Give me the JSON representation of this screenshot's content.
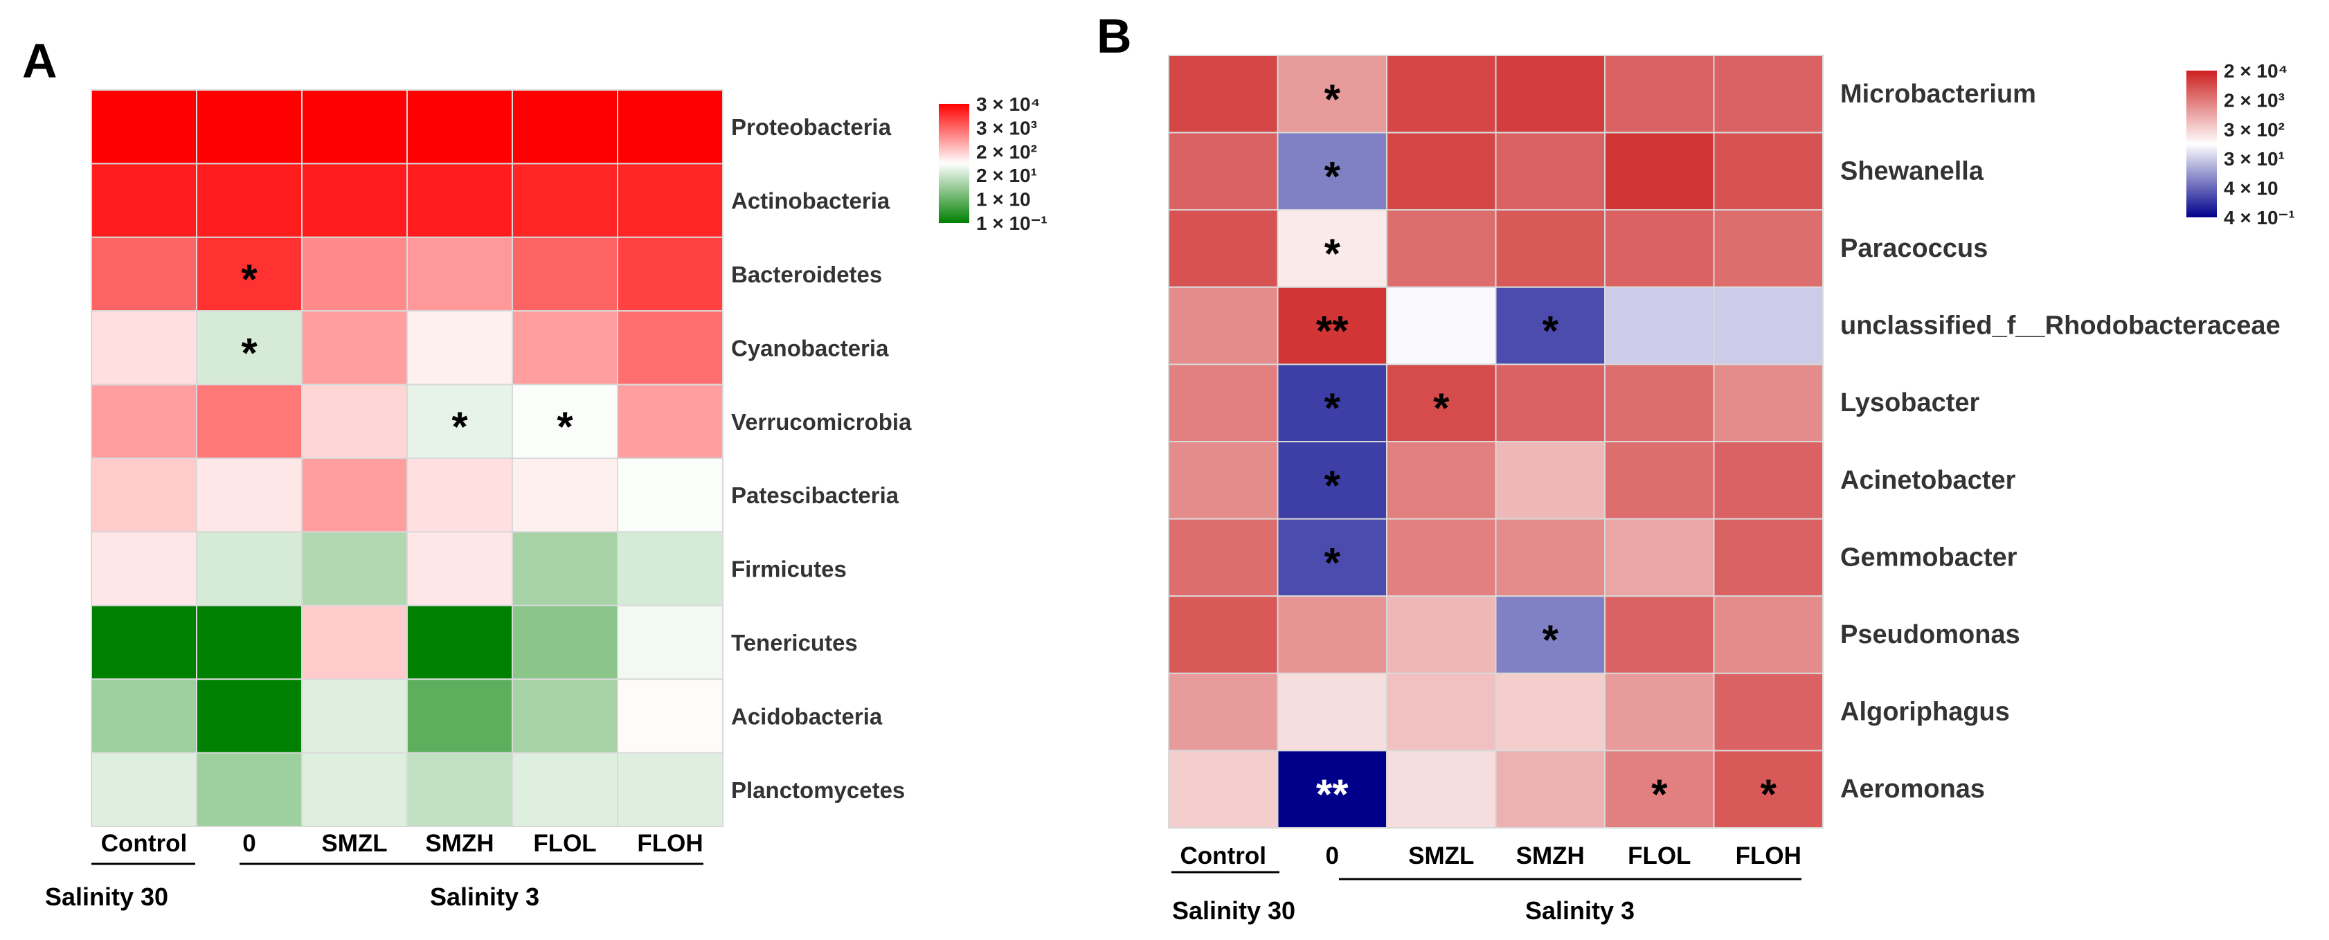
{
  "chart_data": [
    {
      "panel": "A",
      "type": "heatmap",
      "rows": [
        "Proteobacteria",
        "Actinobacteria",
        "Bacteroidetes",
        "Cyanobacteria",
        "Verrucomicrobia",
        "Patescibacteria",
        "Firmicutes",
        "Tenericutes",
        "Acidobacteria",
        "Planctomycetes"
      ],
      "columns": [
        "Control",
        "0",
        "SMZL",
        "SMZH",
        "FLOL",
        "FLOH"
      ],
      "groups": [
        {
          "label": "Salinity 30",
          "columns": [
            "Control"
          ]
        },
        {
          "label": "Salinity 3",
          "columns": [
            "0",
            "SMZL",
            "SMZH",
            "FLOL",
            "FLOH"
          ]
        }
      ],
      "scale": "log10",
      "colors": [
        "#008000",
        "#ffffff",
        "#ff0000"
      ],
      "legend": {
        "ticks": [
          "3 × 10⁴",
          "3 × 10³",
          "2 × 10²",
          "2 × 10¹",
          "1 × 10",
          "1 × 10⁻¹"
        ],
        "range": [
          30000,
          0.1
        ]
      },
      "values": [
        [
          30000,
          30000,
          30000,
          30000,
          30000,
          30000
        ],
        [
          15000,
          15000,
          15000,
          15000,
          12000,
          12000
        ],
        [
          2500,
          9000,
          1000,
          700,
          2500,
          6000
        ],
        [
          120,
          20,
          600,
          80,
          600,
          2000
        ],
        [
          600,
          1500,
          150,
          30,
          50,
          600
        ],
        [
          200,
          100,
          600,
          120,
          80,
          50
        ],
        [
          100,
          20,
          8,
          100,
          6,
          20
        ],
        [
          0.1,
          0.1,
          200,
          0.1,
          3,
          40
        ],
        [
          5,
          0.1,
          25,
          1,
          6,
          60
        ],
        [
          25,
          5,
          25,
          12,
          25,
          25
        ]
      ],
      "significance": [
        [
          "",
          "",
          "",
          "",
          "",
          ""
        ],
        [
          "",
          "",
          "",
          "",
          "",
          ""
        ],
        [
          "",
          "*",
          "",
          "",
          "",
          ""
        ],
        [
          "",
          "*",
          "",
          "",
          "",
          ""
        ],
        [
          "",
          "",
          "",
          "*",
          "*",
          ""
        ],
        [
          "",
          "",
          "",
          "",
          "",
          ""
        ],
        [
          "",
          "",
          "",
          "",
          "",
          ""
        ],
        [
          "",
          "",
          "",
          "",
          "",
          ""
        ],
        [
          "",
          "",
          "",
          "",
          "",
          ""
        ],
        [
          "",
          "",
          "",
          "",
          "",
          ""
        ]
      ]
    },
    {
      "panel": "B",
      "type": "heatmap",
      "rows": [
        "Microbacterium",
        "Shewanella",
        "Paracoccus",
        "unclassified_f__Rhodobacteraceae",
        "Lysobacter",
        "Acinetobacter",
        "Gemmobacter",
        "Pseudomonas",
        "Algoriphagus",
        "Aeromonas"
      ],
      "columns": [
        "Control",
        "0",
        "SMZL",
        "SMZH",
        "FLOL",
        "FLOH"
      ],
      "groups": [
        {
          "label": "Salinity 30",
          "columns": [
            "Control"
          ]
        },
        {
          "label": "Salinity 3",
          "columns": [
            "0",
            "SMZL",
            "SMZH",
            "FLOL",
            "FLOH"
          ]
        }
      ],
      "scale": "log10",
      "colors": [
        "#00008b",
        "#ffffff",
        "#cc2020"
      ],
      "legend": {
        "ticks": [
          "2 × 10⁴",
          "2 × 10³",
          "3 × 10²",
          "3 × 10¹",
          "4 × 10",
          "4 × 10⁻¹"
        ],
        "range": [
          20000,
          0.4
        ]
      },
      "values": [
        [
          8000,
          1000,
          8000,
          10000,
          4000,
          4000
        ],
        [
          4000,
          6,
          8000,
          4000,
          12000,
          6000
        ],
        [
          6000,
          150,
          3000,
          5000,
          4000,
          3000
        ],
        [
          1500,
          12000,
          80,
          2,
          30,
          30
        ],
        [
          2000,
          1.5,
          7000,
          4000,
          3000,
          1500
        ],
        [
          1500,
          1.5,
          2000,
          500,
          3000,
          4000
        ],
        [
          3000,
          2,
          2000,
          1500,
          800,
          4000
        ],
        [
          5000,
          1200,
          500,
          6,
          4000,
          1500
        ],
        [
          1000,
          200,
          400,
          300,
          1000,
          4000
        ],
        [
          300,
          0.4,
          200,
          600,
          2000,
          5000
        ]
      ],
      "significance": [
        [
          "",
          "*",
          "",
          "",
          "",
          ""
        ],
        [
          "",
          "*",
          "",
          "",
          "",
          ""
        ],
        [
          "",
          "*",
          "",
          "",
          "",
          ""
        ],
        [
          "",
          "**",
          "",
          "*",
          "",
          ""
        ],
        [
          "",
          "*",
          "*",
          "",
          "",
          ""
        ],
        [
          "",
          "*",
          "",
          "",
          "",
          ""
        ],
        [
          "",
          "*",
          "",
          "",
          "",
          ""
        ],
        [
          "",
          "",
          "",
          "*",
          "",
          ""
        ],
        [
          "",
          "",
          "",
          "",
          "",
          ""
        ],
        [
          "",
          "**",
          "",
          "",
          "*",
          "*"
        ]
      ]
    }
  ]
}
